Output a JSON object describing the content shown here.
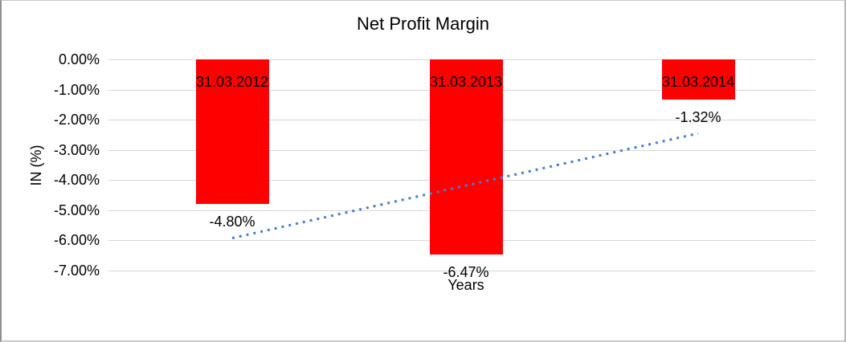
{
  "chart_data": {
    "type": "bar",
    "title": "Net Profit Margin",
    "xlabel": "Years",
    "ylabel": "IN (%)",
    "categories": [
      "31.03.2012",
      "31.03.2013",
      "31.03.2014"
    ],
    "values": [
      -4.8,
      -6.47,
      -1.32
    ],
    "data_labels": [
      "-4.80%",
      "-6.47%",
      "-1.32%"
    ],
    "ytick_values": [
      0,
      -1,
      -2,
      -3,
      -4,
      -5,
      -6,
      -7
    ],
    "ytick_labels": [
      "0.00%",
      "-1.00%",
      "-2.00%",
      "-3.00%",
      "-4.00%",
      "-5.00%",
      "-6.00%",
      "-7.00%"
    ],
    "ylim": [
      -7,
      0
    ],
    "grid": true,
    "legend": "none",
    "bar_color": "#ff0000",
    "gridline_color": "#d6d6d6",
    "trendline": {
      "type": "linear",
      "style": "dotted",
      "color": "#4b7dc3",
      "start_value": -5.94,
      "end_value": -2.46
    }
  }
}
